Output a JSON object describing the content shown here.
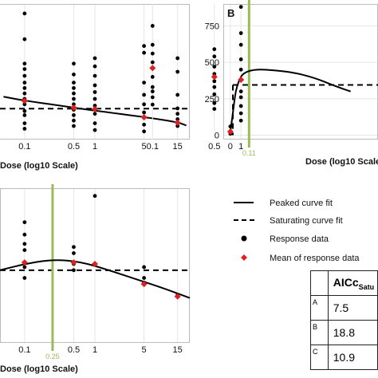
{
  "colors": {
    "data_point": "#000000",
    "mean": "#e02020",
    "fit_line": "#000000",
    "vline": "#9bbb59",
    "grid": "#e6e6e6"
  },
  "chart_data": [
    {
      "panel": "A",
      "type": "scatter",
      "xlabel": "Dose (log10 Scale)",
      "x_ticks": [
        "0.1",
        "0.5",
        "1",
        "5",
        "15"
      ],
      "y_ticks": [],
      "x_domain": [
        -1.35,
        1.35
      ],
      "y_domain": [
        0,
        1000
      ],
      "response_data": [
        {
          "x": 0.1,
          "y": [
            930,
            740,
            560,
            520,
            470,
            420,
            380,
            340,
            300,
            260,
            210,
            180,
            120,
            80
          ]
        },
        {
          "x": 0.5,
          "y": [
            560,
            480,
            420,
            380,
            340,
            300,
            260,
            220,
            180,
            140,
            100
          ]
        },
        {
          "x": 1,
          "y": [
            600,
            540,
            470,
            400,
            350,
            300,
            250,
            190,
            120,
            70
          ]
        },
        {
          "x": 5,
          "y": [
            690,
            640,
            420,
            330,
            260,
            200,
            160,
            110,
            60
          ]
        },
        {
          "x": 15,
          "y": [
            600,
            500,
            330,
            230,
            190,
            150,
            100
          ]
        }
      ],
      "means": [
        {
          "x": 0.1,
          "y": 285
        },
        {
          "x": 0.5,
          "y": 235
        },
        {
          "x": 1,
          "y": 225
        },
        {
          "x": 5,
          "y": 165
        },
        {
          "x": 15,
          "y": 125
        }
      ],
      "peaked_fit": [
        [
          -1.3,
          316
        ],
        [
          -1,
          287
        ],
        [
          -0.3,
          236
        ],
        [
          0,
          213
        ],
        [
          0.7,
          166
        ],
        [
          1.18,
          128
        ],
        [
          1.3,
          104
        ]
      ],
      "saturating_fit": 228
    },
    {
      "panel": "B",
      "type": "scatter",
      "xlabel": "Dose (log10 Scale)",
      "x_ticks": [
        "0",
        "0.1",
        "0.5",
        "1"
      ],
      "y_ticks": [
        "0",
        "250",
        "500",
        "750"
      ],
      "x_domain": [
        -0.2,
        1.55
      ],
      "y_domain": [
        -30,
        900
      ],
      "response_data": [
        {
          "x": 0,
          "y": [
            60,
            20,
            10
          ]
        },
        {
          "x": 0.1,
          "y": [
            960,
            750,
            620,
            560,
            500,
            460,
            400,
            330,
            300,
            260,
            210
          ]
        },
        {
          "x": 0.5,
          "y": [
            590,
            540,
            470,
            420,
            370,
            330,
            280,
            220,
            180
          ]
        },
        {
          "x": 1,
          "y": [
            880,
            700,
            620,
            520,
            450,
            380,
            300,
            260,
            200,
            150,
            100
          ]
        }
      ],
      "means": [
        {
          "x": 0,
          "y": 25
        },
        {
          "x": 0.1,
          "y": 460
        },
        {
          "x": 0.5,
          "y": 400
        },
        {
          "x": 1,
          "y": 380
        }
      ],
      "peaked_fit": [
        [
          0,
          20
        ],
        [
          0.02,
          180
        ],
        [
          0.04,
          340
        ],
        [
          0.1,
          458
        ],
        [
          0.3,
          440
        ],
        [
          0.6,
          395
        ],
        [
          1,
          340
        ],
        [
          1.55,
          300
        ]
      ],
      "saturating_fit": 345,
      "vline": {
        "x": 0.11,
        "label": "0.11"
      }
    },
    {
      "panel": "C",
      "type": "scatter",
      "xlabel": "Dose (log10 Scale)",
      "x_ticks": [
        "0.1",
        "0.5",
        "1",
        "5",
        "15"
      ],
      "y_ticks": [],
      "x_domain": [
        -1.35,
        1.35
      ],
      "y_domain": [
        0,
        1000
      ],
      "response_data": [
        {
          "x": 0.1,
          "y": [
            780,
            700,
            640,
            600,
            490,
            420
          ]
        },
        {
          "x": 0.5,
          "y": [
            620,
            580,
            510,
            470
          ]
        },
        {
          "x": 1,
          "y": [
            950
          ]
        },
        {
          "x": 5,
          "y": [
            490,
            420,
            390
          ]
        },
        {
          "x": 15,
          "y": [
            310
          ]
        }
      ],
      "means": [
        {
          "x": 0.1,
          "y": 520
        },
        {
          "x": 0.5,
          "y": 520
        },
        {
          "x": 1,
          "y": 510
        },
        {
          "x": 5,
          "y": 380
        },
        {
          "x": 15,
          "y": 300
        }
      ],
      "peaked_fit": [
        [
          -1.35,
          470
        ],
        [
          -1,
          510
        ],
        [
          -0.6,
          540
        ],
        [
          -0.2,
          525
        ],
        [
          0.2,
          470
        ],
        [
          0.6,
          410
        ],
        [
          1,
          350
        ],
        [
          1.35,
          290
        ]
      ],
      "saturating_fit": 470,
      "vline": {
        "x": 0.25,
        "label": "0.25"
      }
    }
  ],
  "legend": {
    "peaked": "Peaked curve fit",
    "saturating": "Saturating curve fit",
    "response": "Response data",
    "mean": "Mean of response data"
  },
  "aic_table": {
    "header_main": "AICc",
    "header_sub": "Satu",
    "rows": [
      {
        "label": "A",
        "value": "7.5"
      },
      {
        "label": "B",
        "value": "18.8"
      },
      {
        "label": "C",
        "value": "10.9"
      }
    ]
  }
}
